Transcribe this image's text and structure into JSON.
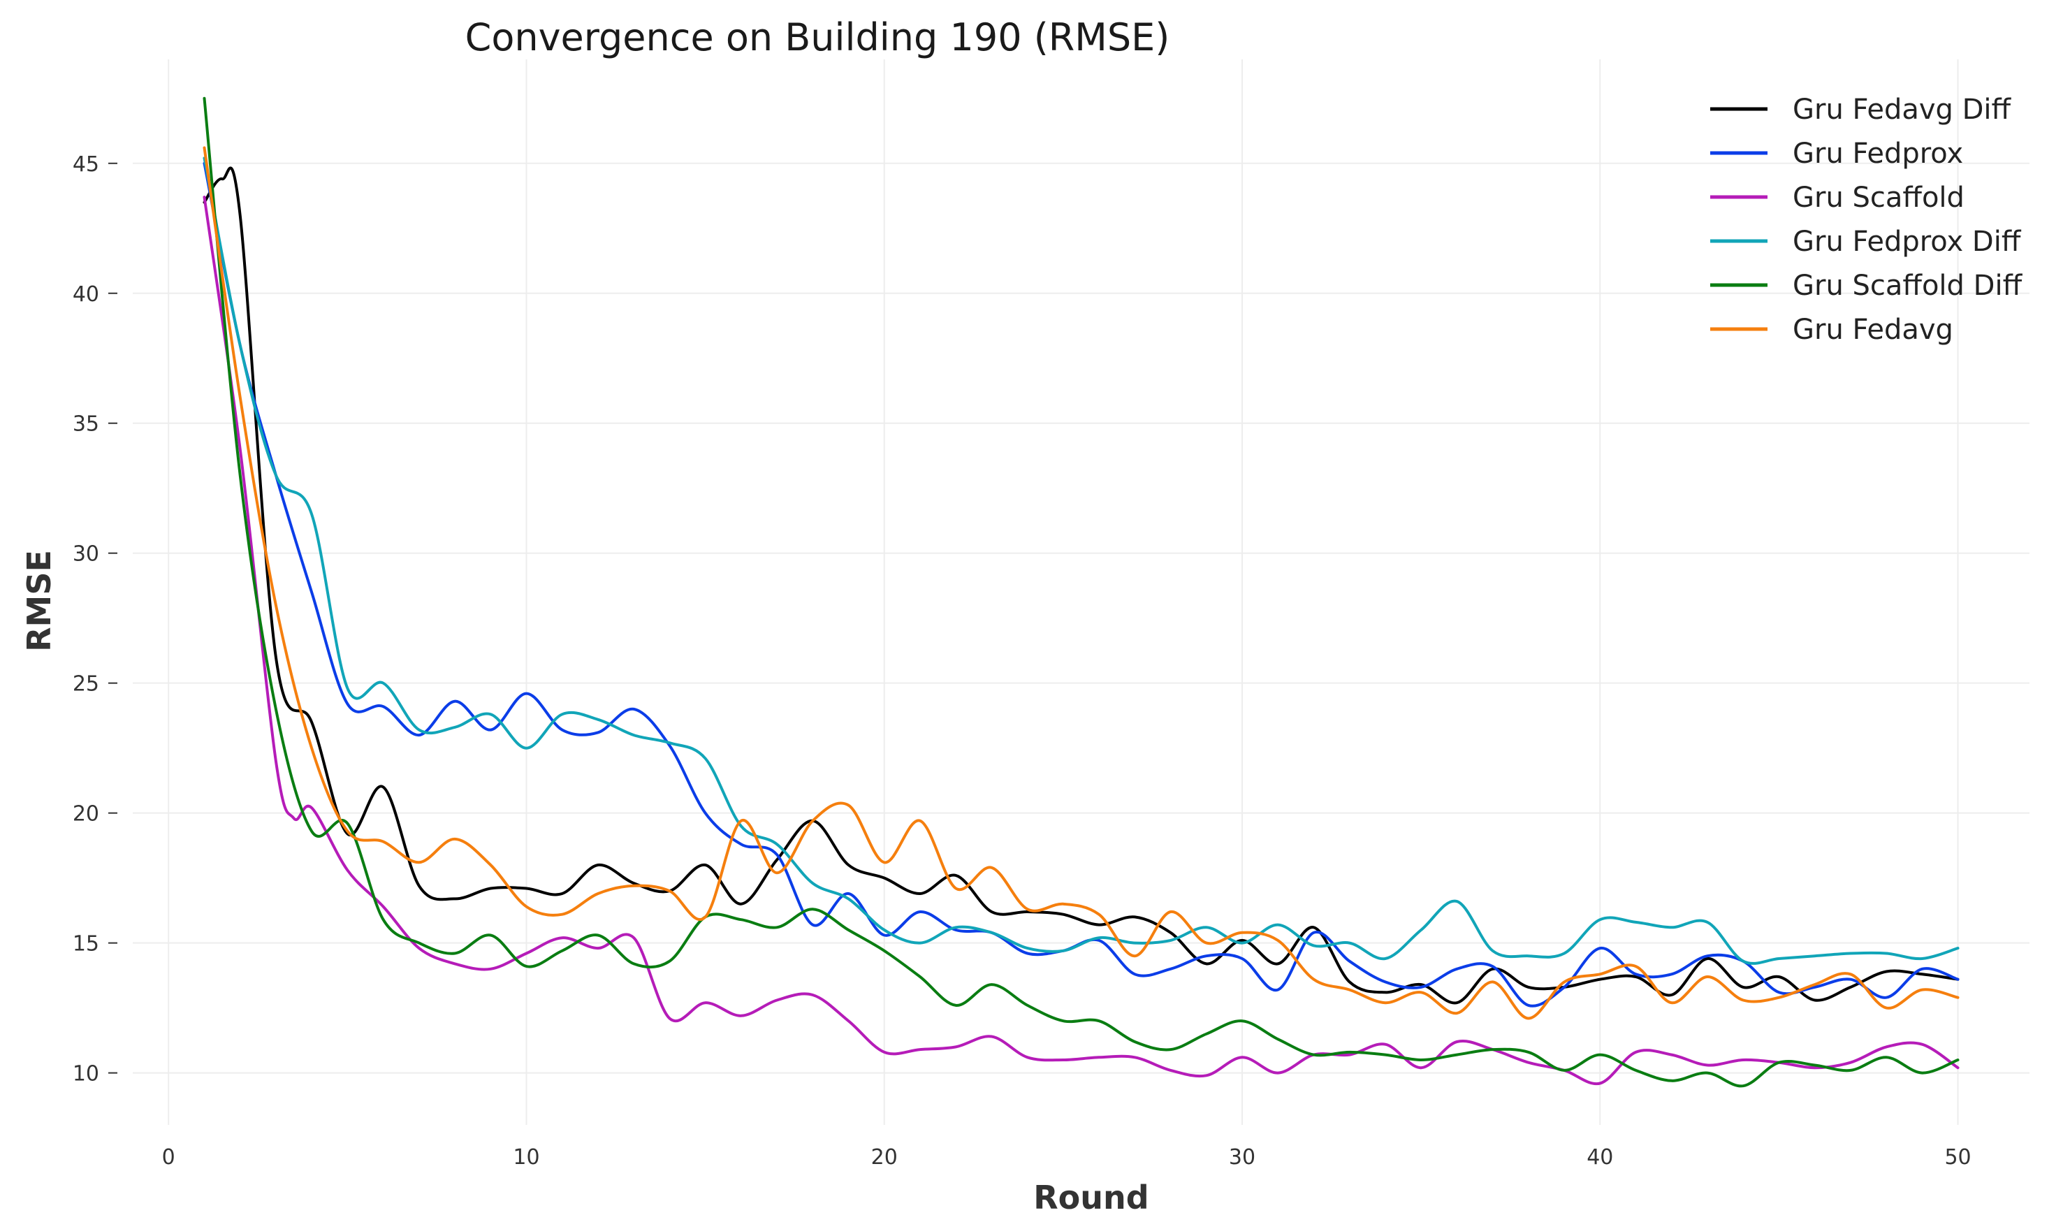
{
  "chart_data": {
    "type": "line",
    "title": "Convergence on Building 190 (RMSE)",
    "xlabel": "Round",
    "ylabel": "RMSE",
    "xlim": [
      -1,
      52
    ],
    "ylim": [
      8,
      49
    ],
    "xticks": [
      0,
      10,
      20,
      30,
      40,
      50
    ],
    "yticks": [
      10,
      15,
      20,
      25,
      30,
      35,
      40,
      45
    ],
    "grid": true,
    "legend_position": "top-right",
    "series": [
      {
        "name": "Gru Fedavg Diff",
        "color": "#000000",
        "x": [
          1,
          1.5,
          2,
          3,
          4,
          5,
          6,
          7,
          8,
          9,
          10,
          11,
          12,
          13,
          14,
          15,
          16,
          17,
          18,
          19,
          20,
          21,
          22,
          23,
          24,
          25,
          26,
          27,
          28,
          29,
          30,
          31,
          32,
          33,
          34,
          35,
          36,
          37,
          38,
          39,
          40,
          41,
          42,
          43,
          44,
          45,
          46,
          47,
          48,
          49,
          50
        ],
        "y": [
          43.5,
          44.4,
          43,
          26,
          23.5,
          19.2,
          21,
          17.2,
          16.7,
          17.1,
          17.1,
          16.9,
          18,
          17.3,
          17,
          18,
          16.5,
          18.2,
          19.7,
          18,
          17.5,
          16.9,
          17.6,
          16.2,
          16.2,
          16.1,
          15.7,
          16,
          15.4,
          14.2,
          15.1,
          14.2,
          15.6,
          13.5,
          13.1,
          13.4,
          12.7,
          14,
          13.3,
          13.3,
          13.6,
          13.7,
          13,
          14.4,
          13.3,
          13.7,
          12.8,
          13.3,
          13.9,
          13.8,
          13.6
        ]
      },
      {
        "name": "Gru Fedprox",
        "color": "#0b3de8",
        "x": [
          1,
          2,
          3,
          4,
          5,
          6,
          7,
          8,
          9,
          10,
          11,
          12,
          13,
          14,
          15,
          16,
          17,
          18,
          19,
          20,
          21,
          22,
          23,
          24,
          25,
          26,
          27,
          28,
          29,
          30,
          31,
          32,
          33,
          34,
          35,
          36,
          37,
          38,
          39,
          40,
          41,
          42,
          43,
          44,
          45,
          46,
          47,
          48,
          49,
          50
        ],
        "y": [
          45,
          38,
          33,
          28.5,
          24.2,
          24.1,
          23,
          24.3,
          23.2,
          24.6,
          23.2,
          23.1,
          24,
          22.6,
          20,
          18.8,
          18.4,
          15.7,
          16.9,
          15.3,
          16.2,
          15.5,
          15.4,
          14.6,
          14.7,
          15.1,
          13.8,
          14,
          14.5,
          14.4,
          13.2,
          15.4,
          14.3,
          13.5,
          13.3,
          14,
          14.1,
          12.6,
          13.3,
          14.8,
          13.8,
          13.8,
          14.5,
          14.3,
          13.1,
          13.3,
          13.6,
          12.9,
          14,
          13.6
        ]
      },
      {
        "name": "Gru Scaffold",
        "color": "#b51cb8",
        "x": [
          1,
          2,
          3,
          3.5,
          4,
          5,
          6,
          7,
          8,
          9,
          10,
          11,
          12,
          13,
          14,
          15,
          16,
          17,
          18,
          19,
          20,
          21,
          22,
          23,
          24,
          25,
          26,
          27,
          28,
          29,
          30,
          31,
          32,
          33,
          34,
          35,
          36,
          37,
          38,
          39,
          40,
          41,
          42,
          43,
          44,
          45,
          46,
          47,
          48,
          49,
          50
        ],
        "y": [
          43.7,
          34,
          22,
          19.8,
          20.2,
          17.8,
          16.4,
          14.8,
          14.2,
          14,
          14.6,
          15.2,
          14.8,
          15.2,
          12.1,
          12.7,
          12.2,
          12.8,
          13,
          12,
          10.8,
          10.9,
          11,
          11.4,
          10.6,
          10.5,
          10.6,
          10.6,
          10.1,
          9.9,
          10.6,
          10,
          10.7,
          10.7,
          11.1,
          10.2,
          11.2,
          10.9,
          10.4,
          10.1,
          9.6,
          10.8,
          10.7,
          10.3,
          10.5,
          10.4,
          10.2,
          10.4,
          11,
          11.1,
          10.2
        ]
      },
      {
        "name": "Gru Fedprox Diff",
        "color": "#11a5b8",
        "x": [
          1,
          2,
          3,
          4,
          5,
          6,
          7,
          8,
          9,
          10,
          11,
          12,
          13,
          14,
          15,
          16,
          17,
          18,
          19,
          20,
          21,
          22,
          23,
          24,
          25,
          26,
          27,
          28,
          29,
          30,
          31,
          32,
          33,
          34,
          35,
          36,
          37,
          38,
          39,
          40,
          41,
          42,
          43,
          44,
          45,
          46,
          47,
          48,
          49,
          50
        ],
        "y": [
          45.2,
          38,
          33,
          31.5,
          24.8,
          25,
          23.2,
          23.3,
          23.8,
          22.5,
          23.8,
          23.6,
          23,
          22.7,
          22.1,
          19.5,
          18.8,
          17.3,
          16.7,
          15.5,
          15,
          15.6,
          15.4,
          14.8,
          14.7,
          15.2,
          15,
          15.1,
          15.6,
          15,
          15.7,
          14.9,
          15,
          14.4,
          15.5,
          16.6,
          14.7,
          14.5,
          14.6,
          15.9,
          15.8,
          15.6,
          15.8,
          14.3,
          14.4,
          14.5,
          14.6,
          14.6,
          14.4,
          14.8
        ]
      },
      {
        "name": "Gru Scaffold Diff",
        "color": "#0a7d12",
        "x": [
          1,
          2,
          3,
          4,
          5,
          6,
          7,
          8,
          9,
          10,
          11,
          12,
          13,
          14,
          15,
          16,
          17,
          18,
          19,
          20,
          21,
          22,
          23,
          24,
          25,
          26,
          27,
          28,
          29,
          30,
          31,
          32,
          33,
          34,
          35,
          36,
          37,
          38,
          39,
          40,
          41,
          42,
          43,
          44,
          45,
          46,
          47,
          48,
          49,
          50
        ],
        "y": [
          47.5,
          33,
          24,
          19.3,
          19.6,
          15.9,
          15,
          14.6,
          15.3,
          14.1,
          14.7,
          15.3,
          14.2,
          14.3,
          16,
          15.9,
          15.6,
          16.3,
          15.5,
          14.7,
          13.7,
          12.6,
          13.4,
          12.6,
          12,
          12,
          11.2,
          10.9,
          11.5,
          12,
          11.3,
          10.7,
          10.8,
          10.7,
          10.5,
          10.7,
          10.9,
          10.8,
          10.1,
          10.7,
          10.1,
          9.7,
          10,
          9.5,
          10.4,
          10.3,
          10.1,
          10.6,
          10,
          10.5
        ]
      },
      {
        "name": "Gru Fedavg",
        "color": "#f57f0e",
        "x": [
          1,
          2,
          3,
          4,
          5,
          6,
          7,
          8,
          9,
          10,
          11,
          12,
          13,
          14,
          15,
          16,
          17,
          18,
          19,
          20,
          21,
          22,
          23,
          24,
          25,
          26,
          27,
          28,
          29,
          30,
          31,
          32,
          33,
          34,
          35,
          36,
          37,
          38,
          39,
          40,
          41,
          42,
          43,
          44,
          45,
          46,
          47,
          48,
          49,
          50
        ],
        "y": [
          45.6,
          36,
          28,
          22.5,
          19.3,
          18.9,
          18.1,
          19,
          18,
          16.4,
          16.1,
          16.9,
          17.2,
          17,
          16,
          19.7,
          17.7,
          19.7,
          20.3,
          18.1,
          19.7,
          17.1,
          17.9,
          16.3,
          16.5,
          16.1,
          14.5,
          16.2,
          15,
          15.4,
          15.1,
          13.6,
          13.2,
          12.7,
          13.1,
          12.3,
          13.5,
          12.1,
          13.5,
          13.8,
          14.1,
          12.7,
          13.7,
          12.8,
          12.9,
          13.4,
          13.8,
          12.5,
          13.2,
          12.9
        ]
      }
    ]
  }
}
